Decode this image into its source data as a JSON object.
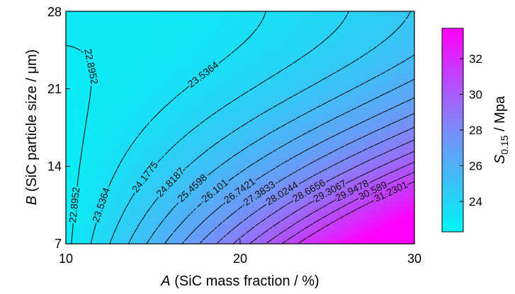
{
  "chart_data": {
    "type": "contour",
    "x_axis": {
      "label_italic": "A",
      "label_rest": " (SiC mass fraction / %)",
      "range": [
        10,
        30
      ],
      "ticks": [
        "10",
        "20",
        "30"
      ]
    },
    "y_axis": {
      "label_italic": "B",
      "label_rest": " (SiC particle size / μm)",
      "range": [
        7,
        28
      ],
      "ticks": [
        "7",
        "14",
        "21",
        "28"
      ]
    },
    "colorbar": {
      "label_main": "S",
      "label_sub": "0.15",
      "label_rest": " / Mpa",
      "range": [
        22.3,
        33.7
      ],
      "ticks": [
        "24",
        "26",
        "28",
        "30",
        "32"
      ],
      "color_low": "#00f5f5",
      "color_mid": "#7a8cf8",
      "color_high": "#ff00ff"
    },
    "contour_labels": [
      "22.8952",
      "23.5364",
      "24.1775",
      "24.8187",
      "25.4598",
      "26.101",
      "26.7421",
      "27.3833",
      "28.0244",
      "28.6656",
      "29.3067",
      "29.9478",
      "30.589",
      "31.2301"
    ],
    "line_style": "dashed",
    "grid": false
  }
}
